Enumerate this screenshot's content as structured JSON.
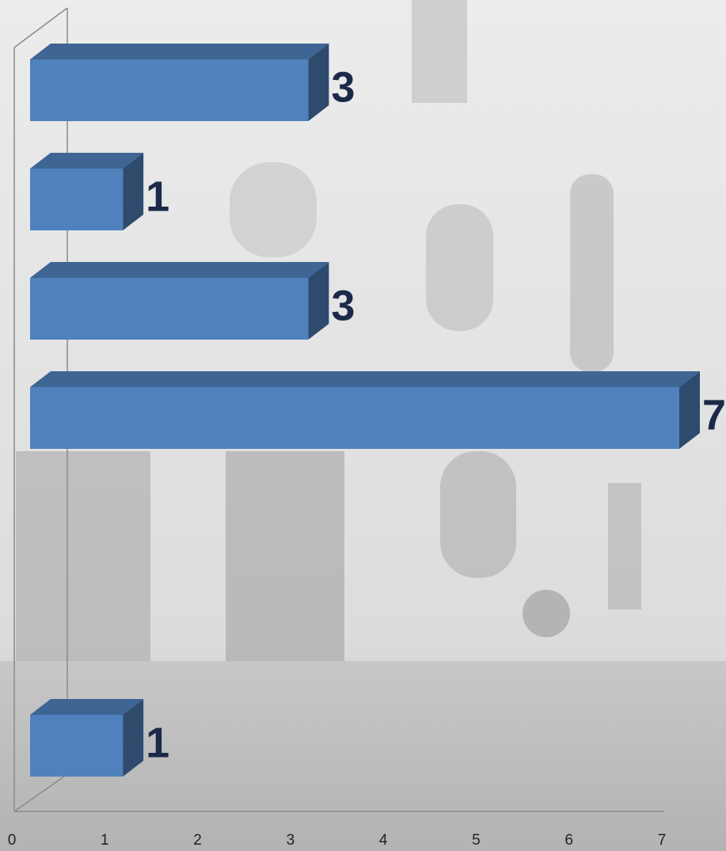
{
  "chart_data": {
    "type": "bar3d",
    "orientation": "horizontal",
    "categories": [
      null,
      null,
      null,
      null,
      null,
      null,
      null
    ],
    "values": [
      3,
      1,
      3,
      7,
      null,
      null,
      1
    ],
    "color": "#4f81bd",
    "xlim": [
      0,
      7
    ],
    "xticks": [
      0,
      1,
      2,
      3,
      4,
      5,
      6,
      7
    ]
  }
}
